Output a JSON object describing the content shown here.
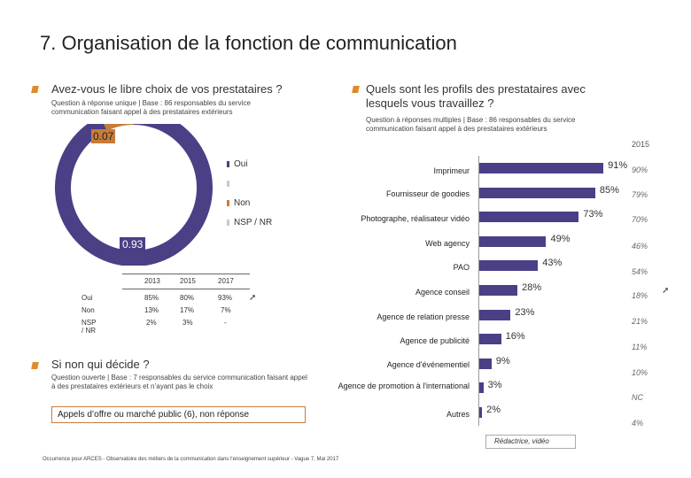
{
  "page": {
    "title": "7. Organisation de la fonction de communication",
    "left_heading": "Avez-vous le libre choix de vos prestataires ?",
    "left_note": "Question à réponse unique | Base : 86 responsables du service communication faisant appel à des prestataires extérieurs",
    "right_heading": "Quels sont les profils des prestataires avec lesquels vous travaillez ?",
    "right_note": "Question à réponses multiples | Base : 86 responsables du service communication faisant appel à des prestataires extérieurs",
    "year_label": "2015",
    "second_heading": "Si non qui décide ?",
    "second_note": "Question ouverte | Base : 7 responsables du service communication faisant appel à des prestataires extérieurs et n’ayant pas le choix",
    "callout": "Appels d’offre ou marché public (6), non réponse",
    "redactrice_label": "Rédactrice, vidéo",
    "footer": "Occurrence pour ARCES - Observatoire des métiers de la communication dans l'enseignement supérieur - Vague 7, Mai 2017",
    "trend_arrow": "➚"
  },
  "colors": {
    "purple": "#4b3f86",
    "orange": "#c87c3a",
    "grey": "#c9c9c9",
    "accent": "#e08a2a"
  },
  "legend": [
    "Oui",
    "",
    "Non",
    "NSP / NR"
  ],
  "table": {
    "headers": [
      "2013",
      "2015",
      "2017"
    ],
    "rows": [
      {
        "label": "Oui",
        "v2013": "85%",
        "v2015": "80%",
        "v2017": "93%"
      },
      {
        "label": "Non",
        "v2013": "13%",
        "v2015": "17%",
        "v2017": "7%"
      },
      {
        "label": "NSP / NR",
        "v2013": "2%",
        "v2015": "3%",
        "v2017": "-"
      }
    ]
  },
  "chart_data": [
    {
      "type": "pie",
      "title": "Avez-vous le libre choix de vos prestataires ?",
      "slices": [
        {
          "name": "Oui",
          "value": 0.93,
          "label": "0.93",
          "color": "#4b3f86"
        },
        {
          "name": "Non",
          "value": 0.07,
          "label": "0.07",
          "color": "#c87c3a"
        }
      ]
    },
    {
      "type": "bar",
      "orientation": "horizontal",
      "title": "Quels sont les profils des prestataires avec lesquels vous travaillez ?",
      "categories": [
        "Imprimeur",
        "Fournisseur de goodies",
        "Photographe, réalisateur vidéo",
        "Web agency",
        "PAO",
        "Agence conseil",
        "Agence de relation presse",
        "Agence de publicité",
        "Agence d'événementiel",
        "Agence de promotion à l'international",
        "Autres"
      ],
      "values": [
        91,
        85,
        73,
        49,
        43,
        28,
        23,
        16,
        9,
        3,
        2
      ],
      "value_labels": [
        "91%",
        "85%",
        "73%",
        "49%",
        "43%",
        "28%",
        "23%",
        "16%",
        "9%",
        "3%",
        "2%"
      ],
      "comparison_2015": [
        "90%",
        "79%",
        "70%",
        "46%",
        "54%",
        "18%",
        "21%",
        "11%",
        "10%",
        "NC",
        "4%"
      ],
      "xlim": [
        0,
        100
      ]
    }
  ]
}
